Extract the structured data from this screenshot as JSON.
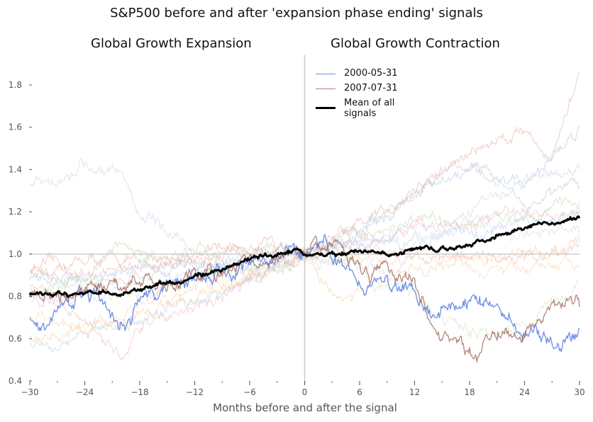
{
  "chart_data": {
    "type": "line",
    "title": "S&P500 before and after 'expansion phase ending' signals",
    "subtitles": [
      "Global Growth Expansion",
      "Global Growth Contraction"
    ],
    "xlabel": "Months before and after the signal",
    "ylabel": "",
    "xlim": [
      -30,
      30
    ],
    "ylim": [
      0.4,
      1.95
    ],
    "xticks": [
      -30,
      -24,
      -18,
      -12,
      -6,
      0,
      6,
      12,
      18,
      24,
      30
    ],
    "xtick_labels": [
      "−30",
      "−24",
      "−18",
      "−12",
      "−6",
      "0",
      "6",
      "12",
      "18",
      "24",
      "30"
    ],
    "yticks": [
      0.4,
      0.6,
      0.8,
      1.0,
      1.2,
      1.4,
      1.6,
      1.8
    ],
    "ytick_labels": [
      "0.4",
      "0.6",
      "0.8",
      "1.0",
      "1.2",
      "1.4",
      "1.6",
      "1.8"
    ],
    "reference_lines": {
      "horizontal": 1.0,
      "vertical": 0
    },
    "grid": false,
    "legend_position": "top-center",
    "series": [
      {
        "name": "2000-05-31",
        "color": "#4169e1",
        "highlight": true,
        "x": [
          -30,
          -28,
          -26,
          -24,
          -22,
          -20.5,
          -20,
          -19,
          -18,
          -15,
          -12,
          -10,
          -8,
          -6,
          -4,
          -2,
          0,
          2,
          4,
          6,
          8,
          10,
          12,
          14,
          16,
          18,
          20,
          22,
          24,
          26,
          28,
          30
        ],
        "y": [
          0.69,
          0.66,
          0.75,
          0.78,
          0.77,
          0.68,
          0.7,
          0.66,
          0.8,
          0.85,
          0.9,
          0.92,
          0.93,
          0.95,
          0.98,
          1.03,
          1.0,
          1.05,
          0.95,
          0.85,
          0.88,
          0.84,
          0.85,
          0.72,
          0.75,
          0.78,
          0.77,
          0.72,
          0.66,
          0.6,
          0.56,
          0.65
        ]
      },
      {
        "name": "2007-07-31",
        "color": "#a0685a",
        "highlight": true,
        "x": [
          -30,
          -27,
          -24,
          -21,
          -18,
          -15,
          -12,
          -9,
          -6,
          -3,
          -1,
          0,
          2,
          3,
          5,
          7,
          9,
          11,
          12,
          13,
          14,
          16,
          17,
          18,
          19,
          20,
          22,
          24,
          26,
          28,
          29,
          30
        ],
        "y": [
          0.81,
          0.8,
          0.82,
          0.84,
          0.86,
          0.87,
          0.9,
          0.93,
          0.97,
          0.99,
          1.03,
          1.0,
          1.03,
          1.04,
          0.96,
          0.9,
          0.92,
          0.88,
          0.87,
          0.78,
          0.62,
          0.6,
          0.58,
          0.56,
          0.5,
          0.57,
          0.62,
          0.65,
          0.7,
          0.76,
          0.79,
          0.75
        ]
      },
      {
        "name": "Mean of all signals",
        "color": "#000000",
        "highlight": true,
        "x": [
          -30,
          -27,
          -25,
          -22,
          -20,
          -18,
          -15,
          -12,
          -9,
          -6,
          -3,
          -1,
          0,
          2,
          4,
          6,
          8,
          10,
          12,
          14,
          16,
          18,
          20,
          22,
          24,
          26,
          28,
          30
        ],
        "y": [
          0.81,
          0.82,
          0.81,
          0.83,
          0.81,
          0.83,
          0.86,
          0.89,
          0.93,
          0.97,
          1.0,
          1.02,
          1.0,
          1.01,
          1.0,
          1.02,
          1.01,
          1.0,
          1.03,
          1.03,
          1.02,
          1.05,
          1.07,
          1.1,
          1.11,
          1.15,
          1.14,
          1.17
        ]
      }
    ],
    "background_series_colors": [
      "#e8a090",
      "#9bbfe0",
      "#b8d4a0",
      "#f5c88a",
      "#c8c8e8",
      "#bbbbbb",
      "#f0b0b0",
      "#a9c8e8",
      "#d0d0f0",
      "#f7d0a0",
      "#c8e0b0",
      "#f0a8a0"
    ],
    "background_series": [
      {
        "x": [
          -30,
          -24,
          -18,
          -12,
          -6,
          0,
          6,
          12,
          18,
          24,
          27,
          30
        ],
        "y": [
          0.93,
          0.97,
          0.98,
          1.0,
          1.04,
          1.0,
          1.12,
          1.3,
          1.48,
          1.6,
          1.45,
          1.86
        ]
      },
      {
        "x": [
          -30,
          -24,
          -18,
          -12,
          -6,
          0,
          6,
          12,
          18,
          24,
          28,
          30
        ],
        "y": [
          0.86,
          0.88,
          0.92,
          0.95,
          1.0,
          1.0,
          1.1,
          1.28,
          1.38,
          1.35,
          1.5,
          1.6
        ]
      },
      {
        "x": [
          -30,
          -24,
          -20,
          -18,
          -12,
          -6,
          0,
          6,
          12,
          18,
          24,
          30
        ],
        "y": [
          0.85,
          0.9,
          1.04,
          0.97,
          1.0,
          1.04,
          1.0,
          1.1,
          1.15,
          1.12,
          1.2,
          1.25
        ]
      },
      {
        "x": [
          -30,
          -24,
          -18,
          -12,
          -6,
          0,
          3,
          6,
          12,
          18,
          24,
          30
        ],
        "y": [
          0.6,
          0.62,
          0.72,
          0.8,
          0.88,
          1.0,
          0.78,
          0.8,
          0.92,
          0.98,
          1.0,
          1.05
        ]
      },
      {
        "x": [
          -30,
          -27,
          -24,
          -20,
          -18,
          -15,
          -12,
          -9,
          -6,
          0,
          6,
          12,
          18,
          24,
          30
        ],
        "y": [
          1.33,
          1.35,
          1.42,
          1.38,
          1.2,
          1.1,
          1.02,
          0.96,
          0.94,
          1.0,
          1.05,
          1.12,
          1.2,
          1.35,
          1.4
        ]
      },
      {
        "x": [
          -30,
          -24,
          -18,
          -12,
          -6,
          -2,
          0,
          6,
          12,
          18,
          24,
          30
        ],
        "y": [
          0.93,
          0.85,
          0.9,
          0.96,
          0.92,
          0.92,
          1.0,
          1.1,
          1.3,
          1.45,
          1.25,
          1.32
        ]
      },
      {
        "x": [
          -30,
          -24,
          -21,
          -20,
          -18,
          -12,
          -6,
          0,
          6,
          12,
          18,
          24,
          30
        ],
        "y": [
          0.8,
          0.72,
          0.55,
          0.5,
          0.65,
          0.75,
          0.88,
          1.0,
          1.05,
          1.12,
          1.15,
          1.2,
          1.22
        ]
      },
      {
        "x": [
          -30,
          -24,
          -18,
          -12,
          -6,
          0,
          6,
          12,
          18,
          24,
          30
        ],
        "y": [
          0.57,
          0.62,
          0.7,
          0.78,
          0.87,
          1.0,
          1.03,
          1.06,
          1.1,
          1.15,
          1.2
        ]
      },
      {
        "x": [
          -30,
          -24,
          -18,
          -12,
          -6,
          0,
          6,
          10,
          12,
          18,
          24,
          30
        ],
        "y": [
          0.78,
          0.8,
          0.84,
          0.9,
          0.95,
          1.0,
          0.93,
          0.9,
          1.05,
          1.15,
          1.1,
          1.1
        ]
      },
      {
        "x": [
          -30,
          -24,
          -18,
          -12,
          -6,
          0,
          6,
          12,
          18,
          24,
          30
        ],
        "y": [
          0.7,
          0.66,
          0.74,
          0.82,
          0.9,
          1.0,
          0.96,
          0.98,
          0.95,
          0.92,
          0.96
        ]
      },
      {
        "x": [
          -30,
          -24,
          -18,
          -12,
          -6,
          0,
          6,
          12,
          16,
          18,
          24,
          28,
          30
        ],
        "y": [
          0.82,
          0.84,
          0.82,
          0.88,
          0.92,
          1.0,
          0.96,
          0.8,
          0.68,
          0.62,
          0.66,
          0.8,
          0.86
        ]
      },
      {
        "x": [
          -30,
          -24,
          -18,
          -12,
          -6,
          0,
          6,
          12,
          18,
          24,
          30
        ],
        "y": [
          0.9,
          0.92,
          0.95,
          0.98,
          1.02,
          1.0,
          1.04,
          1.0,
          0.98,
          1.0,
          1.04
        ]
      }
    ]
  },
  "legend": {
    "items": [
      {
        "label": "2000-05-31",
        "color": "#6d8fe6"
      },
      {
        "label": "2007-07-31",
        "color": "#b08478"
      },
      {
        "label_line1": "Mean of all",
        "label_line2": "signals",
        "color": "#000000"
      }
    ]
  }
}
